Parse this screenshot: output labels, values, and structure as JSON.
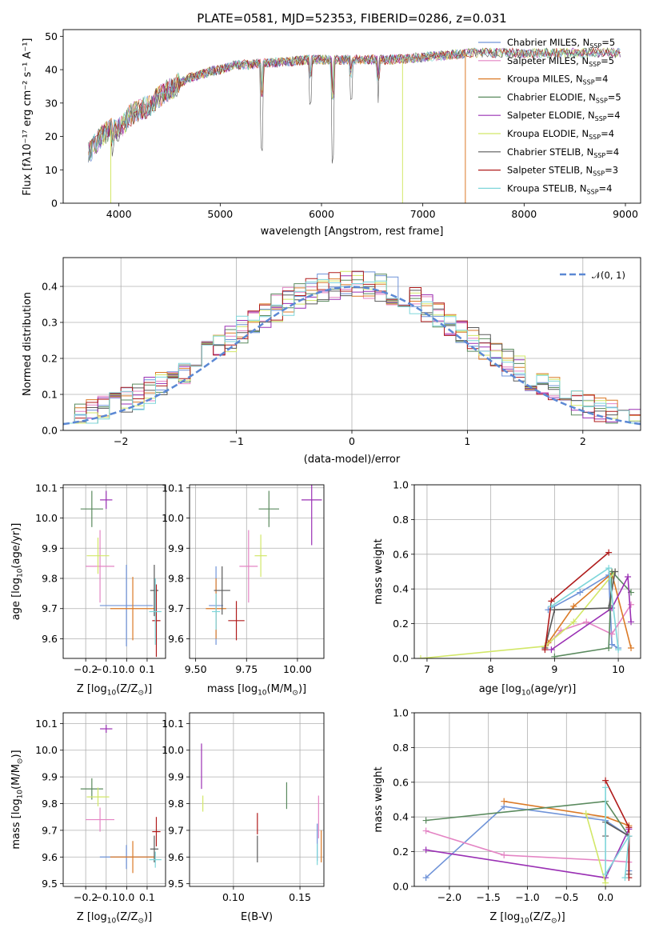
{
  "colors": {
    "chabrier_miles": "#6f93d8",
    "salpeter_miles": "#e484c4",
    "kroupa_miles": "#db7a27",
    "chabrier_elodie": "#5a8a5e",
    "salpeter_elodie": "#9a30b4",
    "kroupa_elodie": "#d2e768",
    "chabrier_stelib": "#5a5a5a",
    "salpeter_stelib": "#b01c1c",
    "kroupa_stelib": "#7ed6da",
    "normal_curve": "#5b88d4"
  },
  "chart_data": [
    {
      "id": "spectrum",
      "type": "line",
      "title": "PLATE=0581, MJD=52353, FIBERID=0286, z=0.031",
      "xlabel": "wavelength [Angstrom, rest frame]",
      "ylabel": "Flux [f$_\\lambda$10$^{-17}$ erg cm$^{-2}$ s$^{-1}$ A$^{-1}$]",
      "xlim": [
        3450,
        9150
      ],
      "ylim": [
        0,
        52
      ],
      "xticks": [
        4000,
        5000,
        6000,
        7000,
        8000,
        9000
      ],
      "yticks": [
        0,
        10,
        20,
        30,
        40,
        50
      ],
      "grid": false,
      "legend_position": "upper right",
      "legend": [
        {
          "key": "chabrier_miles",
          "name": "Chabrier MILES, N",
          "sub": "SSP",
          "tail": "=5"
        },
        {
          "key": "salpeter_miles",
          "name": "Salpeter MILES, N",
          "sub": "SSP",
          "tail": "=5"
        },
        {
          "key": "kroupa_miles",
          "name": "Kroupa MILES, N",
          "sub": "SSP",
          "tail": "=4"
        },
        {
          "key": "chabrier_elodie",
          "name": "Chabrier ELODIE, N",
          "sub": "SSP",
          "tail": "=5"
        },
        {
          "key": "salpeter_elodie",
          "name": "Salpeter ELODIE, N",
          "sub": "SSP",
          "tail": "=4"
        },
        {
          "key": "kroupa_elodie",
          "name": "Kroupa ELODIE, N",
          "sub": "SSP",
          "tail": "=4"
        },
        {
          "key": "chabrier_stelib",
          "name": "Chabrier STELIB, N",
          "sub": "SSP",
          "tail": "=4"
        },
        {
          "key": "salpeter_stelib",
          "name": "Salpeter STELIB, N",
          "sub": "SSP",
          "tail": "=3"
        },
        {
          "key": "kroupa_stelib",
          "name": "Kroupa STELIB, N",
          "sub": "SSP",
          "tail": "=4"
        }
      ],
      "continuum": [
        [
          3700,
          15
        ],
        [
          3800,
          19
        ],
        [
          3900,
          22
        ],
        [
          4000,
          22
        ],
        [
          4100,
          26
        ],
        [
          4200,
          28
        ],
        [
          4300,
          29
        ],
        [
          4400,
          32
        ],
        [
          4500,
          34
        ],
        [
          4600,
          36
        ],
        [
          4700,
          37.5
        ],
        [
          4800,
          38.5
        ],
        [
          4900,
          39.5
        ],
        [
          5000,
          40
        ],
        [
          5100,
          41
        ],
        [
          5200,
          41.5
        ],
        [
          5300,
          41.5
        ],
        [
          5400,
          42
        ],
        [
          5500,
          42
        ],
        [
          5700,
          42.5
        ],
        [
          5900,
          43
        ],
        [
          6100,
          43
        ],
        [
          6300,
          43
        ],
        [
          6500,
          43
        ],
        [
          6700,
          43
        ],
        [
          6900,
          43.5
        ],
        [
          7100,
          44
        ],
        [
          7300,
          44.5
        ],
        [
          7500,
          45
        ],
        [
          7700,
          45
        ],
        [
          7900,
          45
        ],
        [
          8100,
          45
        ],
        [
          8300,
          45
        ],
        [
          8500,
          45
        ],
        [
          8700,
          45
        ],
        [
          8900,
          45
        ]
      ],
      "absorption_features": [
        {
          "x": 5410,
          "depth": 25
        },
        {
          "x": 6110,
          "depth": 30
        },
        {
          "x": 5890,
          "depth": 12
        },
        {
          "x": 6560,
          "depth": 14
        },
        {
          "x": 6290,
          "depth": 12
        },
        {
          "x": 3935,
          "depth": 5
        }
      ],
      "truncated_series": [
        {
          "key": "kroupa_elodie",
          "x_end": 3920
        },
        {
          "key": "kroupa_elodie",
          "x_end": 6800
        },
        {
          "key": "kroupa_miles",
          "x_end": 7420
        }
      ]
    },
    {
      "id": "residuals",
      "type": "histogram",
      "xlabel": "(data-model)/error",
      "ylabel": "Normed distribution",
      "xlim": [
        -2.5,
        2.5
      ],
      "ylim": [
        0,
        0.48
      ],
      "xticks": [
        -2,
        -1,
        0,
        1,
        2
      ],
      "yticks": [
        0.0,
        0.1,
        0.2,
        0.3,
        0.4
      ],
      "grid": true,
      "legend_position": "upper right",
      "normal_label": "𝒩(0, 1)",
      "bin_width": 0.1
    },
    {
      "id": "age_vs_Z",
      "type": "scatter_errorbar",
      "xlabel": "Z [log",
      "xlabel_sub": "10",
      "xlabel_tail": "(Z/Z",
      "xlabel_end": ")]",
      "ylabel": "age  [log",
      "ylabel_sub": "10",
      "ylabel_tail": "(age/yr)]",
      "xlim": [
        -0.31,
        0.19
      ],
      "ylim": [
        9.535,
        10.11
      ],
      "xticks": [
        -0.2,
        -0.1,
        0.0,
        0.1
      ],
      "yticks": [
        9.6,
        9.7,
        9.8,
        9.9,
        10.0,
        10.1
      ],
      "grid": true,
      "points": [
        {
          "key": "chabrier_miles",
          "x": -0.001,
          "xerr": 0.26,
          "y": 9.71,
          "yerr": 0.27
        },
        {
          "key": "salpeter_miles",
          "x": -0.13,
          "xerr": 0.14,
          "y": 9.84,
          "yerr": 0.24
        },
        {
          "key": "kroupa_miles",
          "x": 0.03,
          "xerr": 0.22,
          "y": 9.7,
          "yerr": 0.21
        },
        {
          "key": "chabrier_elodie",
          "x": -0.17,
          "xerr": 0.11,
          "y": 10.03,
          "yerr": 0.12
        },
        {
          "key": "salpeter_elodie",
          "x": -0.1,
          "xerr": 0.06,
          "y": 10.06,
          "yerr": 0.06
        },
        {
          "key": "kroupa_elodie",
          "x": -0.14,
          "xerr": 0.11,
          "y": 9.875,
          "yerr": 0.12
        },
        {
          "key": "chabrier_stelib",
          "x": 0.135,
          "xerr": 0.04,
          "y": 9.76,
          "yerr": 0.17
        },
        {
          "key": "salpeter_stelib",
          "x": 0.145,
          "xerr": 0.04,
          "y": 9.66,
          "yerr": 0.24
        },
        {
          "key": "kroupa_stelib",
          "x": 0.14,
          "xerr": 0.06,
          "y": 9.69,
          "yerr": 0.22
        }
      ]
    },
    {
      "id": "age_vs_mass",
      "type": "scatter_errorbar",
      "xlabel": "mass [log",
      "xlabel_sub": "10",
      "xlabel_tail": "(M/M",
      "xlabel_end": ")]",
      "xlim": [
        9.47,
        10.13
      ],
      "ylim": [
        9.535,
        10.11
      ],
      "xticks": [
        9.5,
        9.75,
        10.0
      ],
      "yticks": [
        9.6,
        9.7,
        9.8,
        9.9,
        10.0,
        10.1
      ],
      "grid": true,
      "points": [
        {
          "key": "chabrier_miles",
          "x": 9.6,
          "xerr": 0.07,
          "y": 9.71,
          "yerr": 0.26
        },
        {
          "key": "salpeter_miles",
          "x": 9.76,
          "xerr": 0.09,
          "y": 9.84,
          "yerr": 0.24
        },
        {
          "key": "kroupa_miles",
          "x": 9.6,
          "xerr": 0.1,
          "y": 9.7,
          "yerr": 0.2
        },
        {
          "key": "chabrier_elodie",
          "x": 9.86,
          "xerr": 0.1,
          "y": 10.03,
          "yerr": 0.12
        },
        {
          "key": "salpeter_elodie",
          "x": 10.07,
          "xerr": 0.1,
          "y": 10.06,
          "yerr": 0.3
        },
        {
          "key": "kroupa_elodie",
          "x": 9.82,
          "xerr": 0.06,
          "y": 9.875,
          "yerr": 0.14
        },
        {
          "key": "chabrier_stelib",
          "x": 9.63,
          "xerr": 0.08,
          "y": 9.76,
          "yerr": 0.16
        },
        {
          "key": "salpeter_stelib",
          "x": 9.7,
          "xerr": 0.08,
          "y": 9.66,
          "yerr": 0.13
        },
        {
          "key": "kroupa_stelib",
          "x": 9.6,
          "xerr": 0.04,
          "y": 9.69,
          "yerr": 0.12
        }
      ]
    },
    {
      "id": "weight_vs_age",
      "type": "line",
      "xlabel": "age  [log",
      "xlabel_sub": "10",
      "xlabel_tail": "(age/yr)]",
      "ylabel": "mass weight",
      "xlim": [
        6.8,
        10.35
      ],
      "ylim": [
        0,
        1.0
      ],
      "xticks": [
        7,
        8,
        9,
        10
      ],
      "yticks": [
        0.0,
        0.2,
        0.4,
        0.6,
        0.8,
        1.0
      ],
      "grid": true,
      "series": [
        {
          "key": "chabrier_miles",
          "points": [
            [
              8.9,
              0.28
            ],
            [
              9.4,
              0.38
            ],
            [
              9.85,
              0.48
            ],
            [
              9.9,
              0.08
            ],
            [
              10.0,
              0.06
            ]
          ]
        },
        {
          "key": "salpeter_miles",
          "points": [
            [
              8.85,
              0.06
            ],
            [
              9.1,
              0.16
            ],
            [
              9.5,
              0.21
            ],
            [
              9.9,
              0.14
            ],
            [
              10.2,
              0.31
            ]
          ]
        },
        {
          "key": "kroupa_miles",
          "points": [
            [
              8.9,
              0.09
            ],
            [
              9.3,
              0.3
            ],
            [
              9.9,
              0.49
            ],
            [
              10.2,
              0.06
            ]
          ]
        },
        {
          "key": "chabrier_elodie",
          "points": [
            [
              9.0,
              0.01
            ],
            [
              9.85,
              0.06
            ],
            [
              9.9,
              0.5
            ],
            [
              10.2,
              0.38
            ]
          ]
        },
        {
          "key": "salpeter_elodie",
          "points": [
            [
              8.95,
              0.05
            ],
            [
              9.9,
              0.29
            ],
            [
              10.15,
              0.47
            ],
            [
              10.2,
              0.21
            ]
          ]
        },
        {
          "key": "kroupa_elodie",
          "points": [
            [
              6.9,
              0.0
            ],
            [
              8.85,
              0.07
            ],
            [
              9.3,
              0.21
            ],
            [
              9.95,
              0.5
            ]
          ]
        },
        {
          "key": "chabrier_stelib",
          "points": [
            [
              8.85,
              0.06
            ],
            [
              9.0,
              0.28
            ],
            [
              9.85,
              0.29
            ],
            [
              9.95,
              0.5
            ]
          ]
        },
        {
          "key": "salpeter_stelib",
          "points": [
            [
              8.85,
              0.05
            ],
            [
              8.95,
              0.33
            ],
            [
              9.85,
              0.61
            ]
          ]
        },
        {
          "key": "kroupa_stelib",
          "points": [
            [
              8.95,
              0.3
            ],
            [
              9.85,
              0.52
            ],
            [
              10.0,
              0.05
            ]
          ]
        }
      ]
    },
    {
      "id": "mass_vs_Z",
      "type": "scatter_errorbar",
      "xlabel": "Z [log",
      "xlabel_sub": "10",
      "xlabel_tail": "(Z/Z",
      "xlabel_end": ")]",
      "ylabel": "mass [log",
      "ylabel_sub": "10",
      "ylabel_tail": "(M/M",
      "ylabel_end": ")]",
      "xlim": [
        -0.31,
        0.19
      ],
      "ylim": [
        9.49,
        10.14
      ],
      "xticks": [
        -0.2,
        -0.1,
        0.0,
        0.1
      ],
      "yticks": [
        9.5,
        9.6,
        9.7,
        9.8,
        9.9,
        10.0,
        10.1
      ],
      "grid": true,
      "points": [
        {
          "key": "chabrier_miles",
          "x": -0.001,
          "xerr": 0.26,
          "y": 9.6,
          "yerr": 0.09
        },
        {
          "key": "salpeter_miles",
          "x": -0.13,
          "xerr": 0.14,
          "y": 9.74,
          "yerr": 0.09
        },
        {
          "key": "kroupa_miles",
          "x": 0.03,
          "xerr": 0.22,
          "y": 9.6,
          "yerr": 0.12
        },
        {
          "key": "chabrier_elodie",
          "x": -0.17,
          "xerr": 0.11,
          "y": 9.855,
          "yerr": 0.08
        },
        {
          "key": "salpeter_elodie",
          "x": -0.1,
          "xerr": 0.06,
          "y": 10.08,
          "yerr": 0.03
        },
        {
          "key": "kroupa_elodie",
          "x": -0.14,
          "xerr": 0.11,
          "y": 9.825,
          "yerr": 0.07
        },
        {
          "key": "chabrier_stelib",
          "x": 0.135,
          "xerr": 0.04,
          "y": 9.63,
          "yerr": 0.1
        },
        {
          "key": "salpeter_stelib",
          "x": 0.145,
          "xerr": 0.04,
          "y": 9.695,
          "yerr": 0.11
        },
        {
          "key": "kroupa_stelib",
          "x": 0.14,
          "xerr": 0.06,
          "y": 9.59,
          "yerr": 0.06
        }
      ]
    },
    {
      "id": "mass_vs_EBV",
      "type": "errorbar",
      "xlabel": "E(B-V)",
      "xlim": [
        0.067,
        0.168
      ],
      "ylim": [
        9.49,
        10.14
      ],
      "xticks": [
        0.1,
        0.15
      ],
      "yticks": [
        9.5,
        9.6,
        9.7,
        9.8,
        9.9,
        10.0,
        10.1
      ],
      "grid": true,
      "points": [
        {
          "key": "chabrier_miles",
          "x": 0.163,
          "y": 9.655,
          "yerr": 0.14
        },
        {
          "key": "salpeter_miles",
          "x": 0.164,
          "y": 9.75,
          "yerr": 0.16
        },
        {
          "key": "kroupa_miles",
          "x": 0.166,
          "y": 9.64,
          "yerr": 0.12
        },
        {
          "key": "chabrier_elodie",
          "x": 0.14,
          "y": 9.83,
          "yerr": 0.1
        },
        {
          "key": "salpeter_elodie",
          "x": 0.076,
          "y": 9.94,
          "yerr": 0.17
        },
        {
          "key": "kroupa_elodie",
          "x": 0.077,
          "y": 9.8,
          "yerr": 0.06
        },
        {
          "key": "chabrier_stelib",
          "x": 0.118,
          "y": 9.63,
          "yerr": 0.1
        },
        {
          "key": "salpeter_stelib",
          "x": 0.118,
          "y": 9.725,
          "yerr": 0.08
        },
        {
          "key": "kroupa_stelib",
          "x": 0.163,
          "y": 9.61,
          "yerr": 0.08
        }
      ]
    },
    {
      "id": "weight_vs_Z",
      "type": "line",
      "xlabel": "Z [log",
      "xlabel_sub": "10",
      "xlabel_tail": "(Z/Z",
      "xlabel_end": ")]",
      "ylabel": "mass weight",
      "xlim": [
        -2.45,
        0.45
      ],
      "ylim": [
        0,
        1.0
      ],
      "xticks": [
        -2.0,
        -1.5,
        -1.0,
        -0.5,
        0.0
      ],
      "yticks": [
        0.0,
        0.2,
        0.4,
        0.6,
        0.8,
        1.0
      ],
      "grid": true,
      "series": [
        {
          "key": "chabrier_miles",
          "points": [
            [
              -2.3,
              0.05
            ],
            [
              -1.3,
              0.46
            ],
            [
              0.0,
              0.38
            ],
            [
              0.3,
              0.29
            ],
            [
              0.3,
              0.09
            ]
          ]
        },
        {
          "key": "salpeter_miles",
          "points": [
            [
              -2.3,
              0.32
            ],
            [
              -1.3,
              0.18
            ],
            [
              0.0,
              0.15
            ],
            [
              0.3,
              0.14
            ]
          ]
        },
        {
          "key": "kroupa_miles",
          "points": [
            [
              -1.3,
              0.49
            ],
            [
              0.0,
              0.4
            ],
            [
              0.3,
              0.35
            ]
          ]
        },
        {
          "key": "chabrier_elodie",
          "points": [
            [
              -2.3,
              0.38
            ],
            [
              0.0,
              0.49
            ],
            [
              0.3,
              0.29
            ]
          ]
        },
        {
          "key": "salpeter_elodie",
          "points": [
            [
              -2.3,
              0.21
            ],
            [
              0.0,
              0.05
            ],
            [
              0.3,
              0.33
            ]
          ]
        },
        {
          "key": "kroupa_elodie",
          "points": [
            [
              -0.25,
              0.42
            ],
            [
              0.0,
              0.02
            ]
          ]
        },
        {
          "key": "chabrier_stelib",
          "points": [
            [
              0.0,
              0.29
            ],
            [
              0.0,
              0.37
            ],
            [
              0.3,
              0.29
            ],
            [
              0.3,
              0.07
            ]
          ]
        },
        {
          "key": "salpeter_stelib",
          "points": [
            [
              0.0,
              0.61
            ],
            [
              0.3,
              0.34
            ],
            [
              0.3,
              0.05
            ]
          ]
        },
        {
          "key": "kroupa_stelib",
          "points": [
            [
              0.0,
              0.57
            ],
            [
              0.0,
              0.07
            ],
            [
              0.3,
              0.29
            ],
            [
              0.25,
              0.05
            ]
          ]
        }
      ]
    }
  ]
}
